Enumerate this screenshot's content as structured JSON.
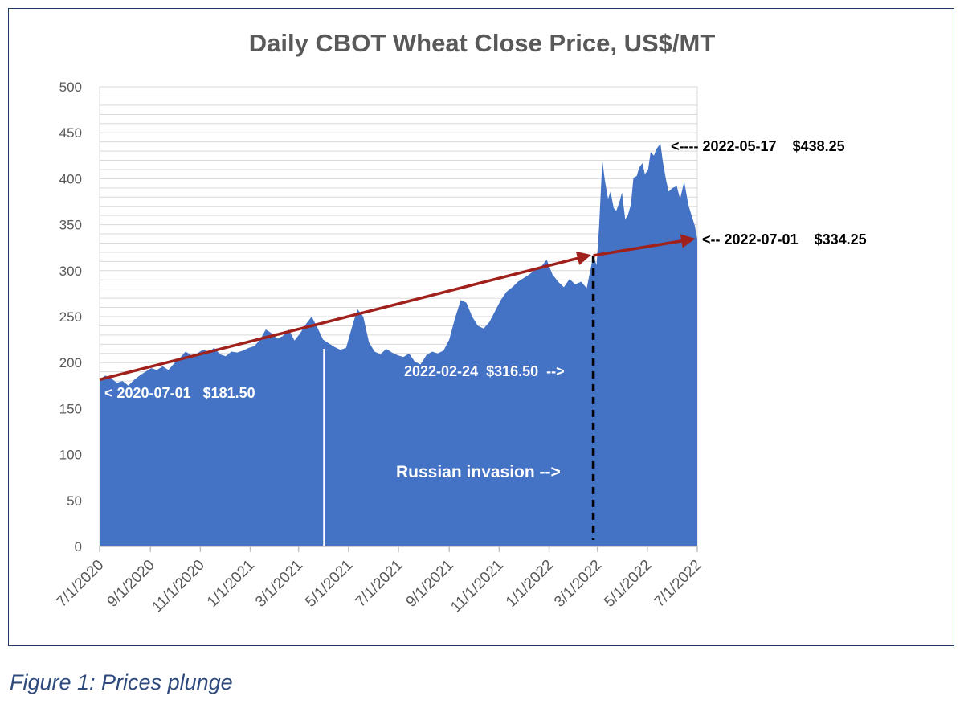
{
  "chart_data": {
    "type": "area",
    "title": "Daily CBOT Wheat Close Price, US$/MT",
    "xlabel": "",
    "ylabel": "",
    "ylim": [
      0,
      500
    ],
    "xlim": [
      "2020-07-01",
      "2022-07-01"
    ],
    "y_ticks": [
      "0",
      "50",
      "100",
      "150",
      "200",
      "250",
      "300",
      "350",
      "400",
      "450",
      "500"
    ],
    "x_ticks": [
      {
        "date": "2020-07-01",
        "label": "7/1/2020"
      },
      {
        "date": "2020-09-01",
        "label": "9/1/2020"
      },
      {
        "date": "2020-11-01",
        "label": "11/1/2020"
      },
      {
        "date": "2021-01-01",
        "label": "1/1/2021"
      },
      {
        "date": "2021-03-01",
        "label": "3/1/2021"
      },
      {
        "date": "2021-05-01",
        "label": "5/1/2021"
      },
      {
        "date": "2021-07-01",
        "label": "7/1/2021"
      },
      {
        "date": "2021-09-01",
        "label": "9/1/2021"
      },
      {
        "date": "2021-11-01",
        "label": "11/1/2021"
      },
      {
        "date": "2022-01-01",
        "label": "1/1/2022"
      },
      {
        "date": "2022-03-01",
        "label": "3/1/2022"
      },
      {
        "date": "2022-05-01",
        "label": "5/1/2022"
      },
      {
        "date": "2022-07-01",
        "label": "7/1/2022"
      }
    ],
    "grid": true,
    "colors": {
      "area": "#4472c4",
      "trend_arrow": "#a0201c",
      "invasion_line": "#000000",
      "grid": "#d9d9d9",
      "axis": "#bfbfbf"
    },
    "series": [
      {
        "x": [
          "2020-07-01",
          "2020-07-08",
          "2020-07-15",
          "2020-07-22",
          "2020-07-29",
          "2020-08-05",
          "2020-08-12",
          "2020-08-19",
          "2020-08-26",
          "2020-09-02",
          "2020-09-09",
          "2020-09-16",
          "2020-09-23",
          "2020-09-30",
          "2020-10-07",
          "2020-10-14",
          "2020-10-21",
          "2020-10-28",
          "2020-11-04",
          "2020-11-11",
          "2020-11-18",
          "2020-11-25",
          "2020-12-02",
          "2020-12-09",
          "2020-12-16",
          "2020-12-23",
          "2020-12-30",
          "2021-01-06",
          "2021-01-13",
          "2021-01-20",
          "2021-01-27",
          "2021-02-03",
          "2021-02-10",
          "2021-02-17",
          "2021-02-24",
          "2021-03-03",
          "2021-03-10",
          "2021-03-17",
          "2021-03-24",
          "2021-03-31",
          "2021-04-07",
          "2021-04-14",
          "2021-04-21",
          "2021-04-28",
          "2021-05-05",
          "2021-05-12",
          "2021-05-19",
          "2021-05-26",
          "2021-06-02",
          "2021-06-09",
          "2021-06-16",
          "2021-06-23",
          "2021-06-30",
          "2021-07-07",
          "2021-07-14",
          "2021-07-21",
          "2021-07-28",
          "2021-08-04",
          "2021-08-11",
          "2021-08-18",
          "2021-08-25",
          "2021-09-01",
          "2021-09-08",
          "2021-09-15",
          "2021-09-22",
          "2021-09-29",
          "2021-10-06",
          "2021-10-13",
          "2021-10-20",
          "2021-10-27",
          "2021-11-03",
          "2021-11-10",
          "2021-11-17",
          "2021-11-24",
          "2021-12-01",
          "2021-12-08",
          "2021-12-15",
          "2021-12-22",
          "2021-12-29",
          "2022-01-05",
          "2022-01-12",
          "2022-01-19",
          "2022-01-26",
          "2022-02-02",
          "2022-02-09",
          "2022-02-16",
          "2022-02-24",
          "2022-02-28",
          "2022-03-03",
          "2022-03-07",
          "2022-03-10",
          "2022-03-14",
          "2022-03-17",
          "2022-03-21",
          "2022-03-24",
          "2022-03-28",
          "2022-03-31",
          "2022-04-04",
          "2022-04-07",
          "2022-04-11",
          "2022-04-14",
          "2022-04-18",
          "2022-04-21",
          "2022-04-25",
          "2022-04-28",
          "2022-05-02",
          "2022-05-05",
          "2022-05-09",
          "2022-05-12",
          "2022-05-17",
          "2022-05-20",
          "2022-05-24",
          "2022-05-27",
          "2022-06-01",
          "2022-06-06",
          "2022-06-10",
          "2022-06-15",
          "2022-06-20",
          "2022-06-24",
          "2022-06-28",
          "2022-07-01"
        ],
        "y": [
          181.5,
          186,
          183,
          178,
          180,
          175,
          181,
          186,
          190,
          194,
          192,
          196,
          192,
          199,
          205,
          212,
          208,
          210,
          214,
          212,
          216,
          209,
          207,
          212,
          211,
          213,
          216,
          218,
          225,
          236,
          232,
          226,
          229,
          236,
          224,
          232,
          242,
          250,
          238,
          225,
          221,
          217,
          214,
          216,
          238,
          258,
          250,
          222,
          212,
          209,
          215,
          211,
          208,
          206,
          210,
          201,
          198,
          208,
          212,
          210,
          213,
          225,
          248,
          268,
          265,
          250,
          240,
          237,
          244,
          256,
          268,
          277,
          282,
          288,
          292,
          296,
          301,
          304,
          312,
          296,
          288,
          282,
          291,
          285,
          288,
          281,
          316.5,
          306,
          347,
          420,
          399,
          378,
          386,
          368,
          365,
          375,
          385,
          356,
          360,
          372,
          401,
          403,
          412,
          417,
          405,
          410,
          429,
          425,
          432,
          438.25,
          418,
          398,
          386,
          390,
          392,
          378,
          397,
          372,
          360,
          349,
          334.25
        ]
      }
    ],
    "annotations": {
      "start": "< 2020-07-01   $181.50",
      "invasion_day": "2022-02-24  $316.50  -->",
      "invasion": "Russian invasion -->",
      "peak": "<---- 2022-05-17    $438.25",
      "end": "<-- 2022-07-01    $334.25"
    },
    "events": {
      "invasion_date": "2022-02-24",
      "gap_date": "2021-04-01"
    },
    "trend_segments": [
      {
        "from": {
          "date": "2020-07-01",
          "value": 181.5
        },
        "to": {
          "date": "2022-02-24",
          "value": 316.5
        }
      },
      {
        "from": {
          "date": "2022-02-24",
          "value": 316.5
        },
        "to": {
          "date": "2022-07-01",
          "value": 334.25
        }
      }
    ]
  },
  "caption": "Figure 1: Prices plunge"
}
